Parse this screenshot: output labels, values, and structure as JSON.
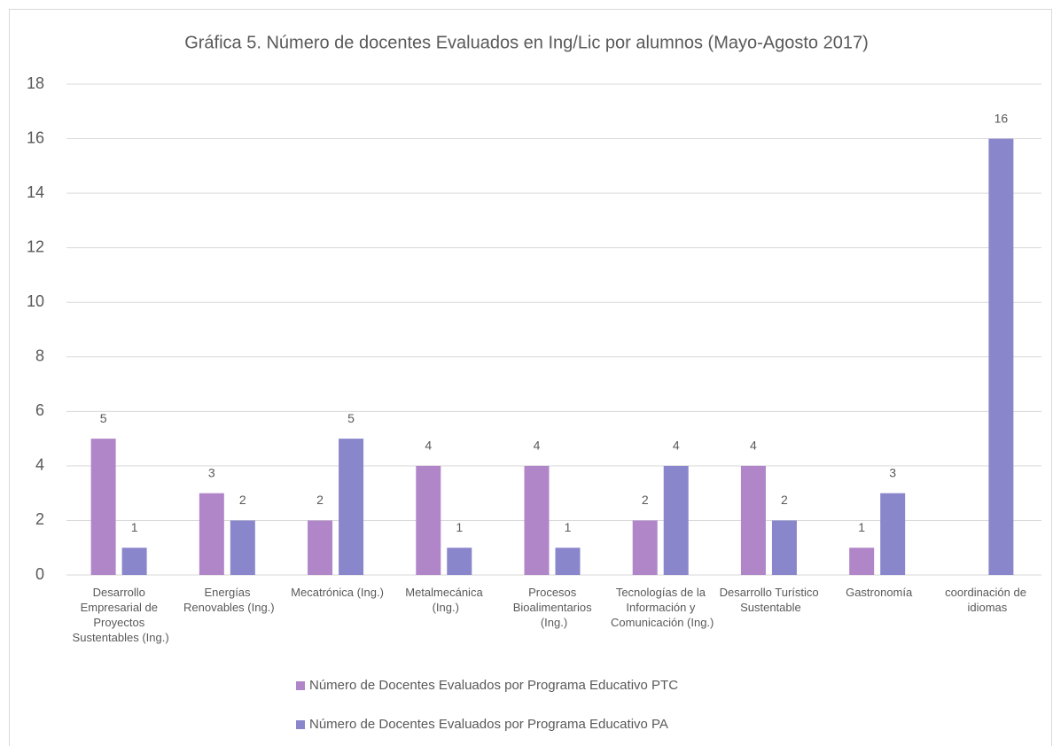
{
  "chart_data": {
    "type": "bar",
    "title": "Gráfica 5. Número de docentes Evaluados en Ing/Lic por alumnos (Mayo-Agosto 2017)",
    "categories": [
      "Desarrollo Empresarial de Proyectos Sustentables (Ing.)",
      "Energías Renovables (Ing.)",
      "Mecatrónica (Ing.)",
      "Metalmecánica (Ing.)",
      "Procesos Bioalimentarios (Ing.)",
      "Tecnologías de la Información y Comunicación (Ing.)",
      "Desarrollo Turístico Sustentable",
      "Gastronomía",
      "coordinación de idiomas"
    ],
    "series": [
      {
        "name": "Número de Docentes Evaluados  por Programa Educativo  PTC",
        "color": "#b086c9",
        "values": [
          5,
          3,
          2,
          4,
          4,
          2,
          4,
          1,
          null
        ]
      },
      {
        "name": "Número de Docentes Evaluados  por Programa Educativo  PA",
        "color": "#8a86cb",
        "values": [
          1,
          2,
          5,
          1,
          1,
          4,
          2,
          3,
          16
        ]
      }
    ],
    "ylim": [
      0,
      18
    ],
    "yticks": [
      0,
      2,
      4,
      6,
      8,
      10,
      12,
      14,
      16,
      18
    ],
    "grid": true
  }
}
